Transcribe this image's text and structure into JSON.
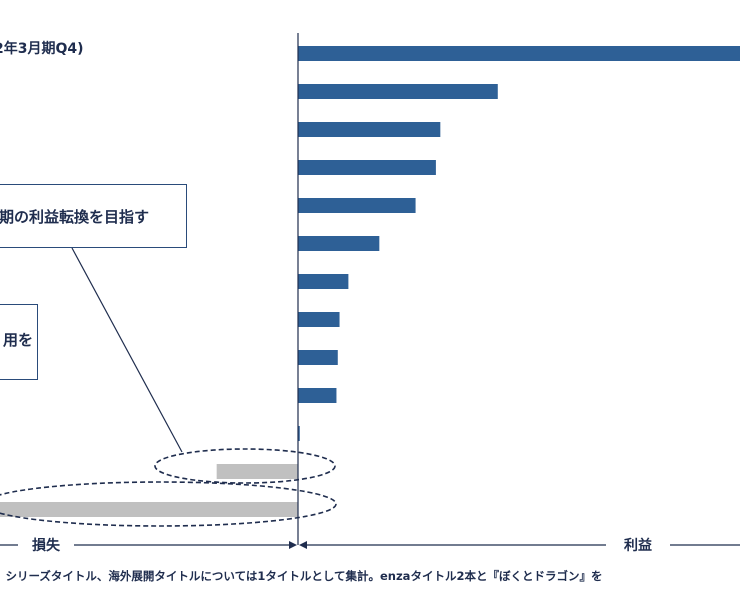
{
  "title": "2年3月期Q4)",
  "callouts": {
    "top": "期の利益転換を目指す",
    "bottom": "用を"
  },
  "axis": {
    "loss_label": "損失",
    "profit_label": "利益"
  },
  "footnote": "。シリーズタイトル、海外展開タイトルについては1タイトルとして集計。enzaタイトル2本と『ぼくとドラゴン』を",
  "colors": {
    "profit_bar": "#2e6096",
    "loss_bar": "#c0c0c0",
    "axis": "#1f2d4e"
  },
  "chart_data": {
    "type": "bar",
    "orientation": "horizontal",
    "values": [
      1.0,
      0.452,
      0.322,
      0.312,
      0.266,
      0.184,
      0.114,
      0.094,
      0.09,
      0.087,
      0.004,
      -0.184,
      -0.68
    ],
    "xlim": [
      -0.68,
      1.0
    ],
    "highlighted_loss_bars": [
      11,
      12
    ]
  }
}
